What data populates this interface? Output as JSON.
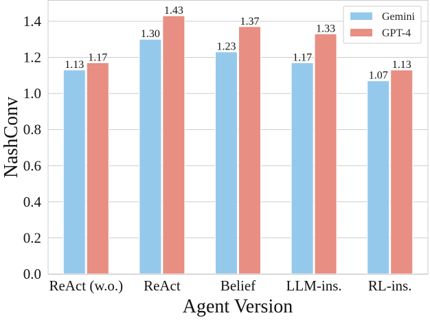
{
  "chart_data": {
    "type": "bar",
    "title": "",
    "xlabel": "Agent Version",
    "ylabel": "NashConv",
    "categories": [
      "ReAct (w.o.)",
      "ReAct",
      "Belief",
      "LLM-ins.",
      "RL-ins."
    ],
    "series": [
      {
        "name": "Gemini",
        "color": "#95c9ec",
        "values": [
          1.13,
          1.3,
          1.23,
          1.17,
          1.07
        ],
        "labels": [
          "1.13",
          "1.30",
          "1.23",
          "1.17",
          "1.07"
        ]
      },
      {
        "name": "GPT-4",
        "color": "#e88e83",
        "values": [
          1.17,
          1.43,
          1.37,
          1.33,
          1.13
        ],
        "labels": [
          "1.17",
          "1.43",
          "1.37",
          "1.33",
          "1.13"
        ]
      }
    ],
    "ylim": [
      0,
      1.5
    ],
    "yticks": [
      "0.0",
      "0.2",
      "0.4",
      "0.6",
      "0.8",
      "1.0",
      "1.2",
      "1.4"
    ],
    "grid": true,
    "legend_position": "upper right"
  }
}
